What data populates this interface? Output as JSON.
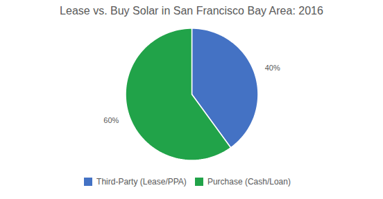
{
  "chart_data": {
    "type": "pie",
    "title": "Lease vs. Buy Solar in San Francisco Bay Area: 2016",
    "categories": [
      "Third-Party (Lease/PPA)",
      "Purchase (Cash/Loan)"
    ],
    "values": [
      40,
      60
    ],
    "value_labels": [
      "40%",
      "60%"
    ],
    "colors": [
      "#4472C4",
      "#21A349"
    ],
    "data_labels": true,
    "legend": "bottom"
  }
}
